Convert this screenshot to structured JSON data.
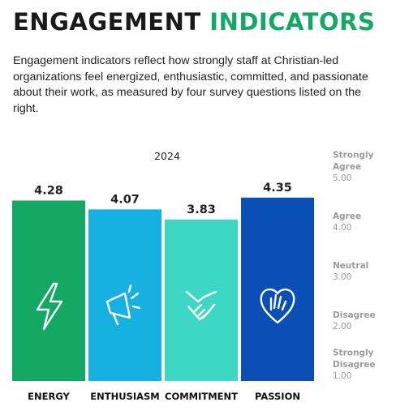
{
  "header": {
    "title_main": "ENGAGEMENT",
    "title_accent": "INDICATORS",
    "description": "Engagement indicators reflect how strongly staff at Christian-led organizations feel energized, enthusiastic, committed, and passionate about their work, as measured by four survey questions listed on the right."
  },
  "chart_data": {
    "type": "bar",
    "subtitle": "2024",
    "categories": [
      "ENERGY",
      "ENTHUSIASM",
      "COMMITMENT",
      "PASSION"
    ],
    "values": [
      4.28,
      4.07,
      3.83,
      4.35
    ],
    "colors": [
      "#14a865",
      "#16b1e2",
      "#3cd8c5",
      "#0a4fb6"
    ],
    "ylim": [
      0,
      5
    ],
    "y2lim": [
      1,
      5
    ],
    "y2ticks": [
      {
        "value": 5,
        "label": "5.00"
      },
      {
        "value": 4,
        "label": "4.00"
      },
      {
        "value": 3,
        "label": "3.00"
      },
      {
        "value": 2,
        "label": "2.00"
      },
      {
        "value": 1,
        "label": "1.00"
      }
    ],
    "y2tick_names": [
      "Strongly Agree",
      "Agree",
      "Neutral",
      "Disagree",
      "Strongly Disagree"
    ]
  }
}
